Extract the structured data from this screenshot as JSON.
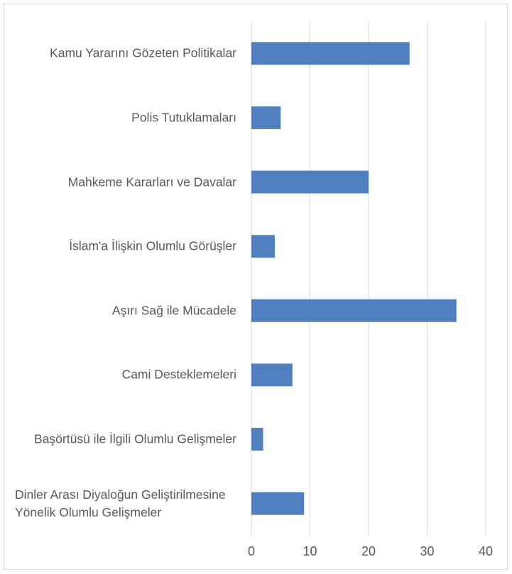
{
  "chart_data": {
    "type": "barh",
    "categories": [
      "Kamu Yararını Gözeten Politikalar",
      "Polis Tutuklamaları",
      "Mahkeme Kararları ve Davalar",
      "İslam'a İlişkin Olumlu Görüşler",
      "Aşırı Sağ ile Mücadele",
      "Cami Desteklemeleri",
      "Başörtüsü ile İlgili Olumlu Gelişmeler",
      "Dinler Arası Diyaloğun Geliştirilmesine Yönelik Olumlu Gelişmeler"
    ],
    "values": [
      27,
      5,
      20,
      4,
      35,
      7,
      2,
      9
    ],
    "color": "#4f7fbf",
    "xlim": [
      0,
      40
    ],
    "xticks": [
      0,
      10,
      20,
      30,
      40
    ],
    "grid": true
  }
}
